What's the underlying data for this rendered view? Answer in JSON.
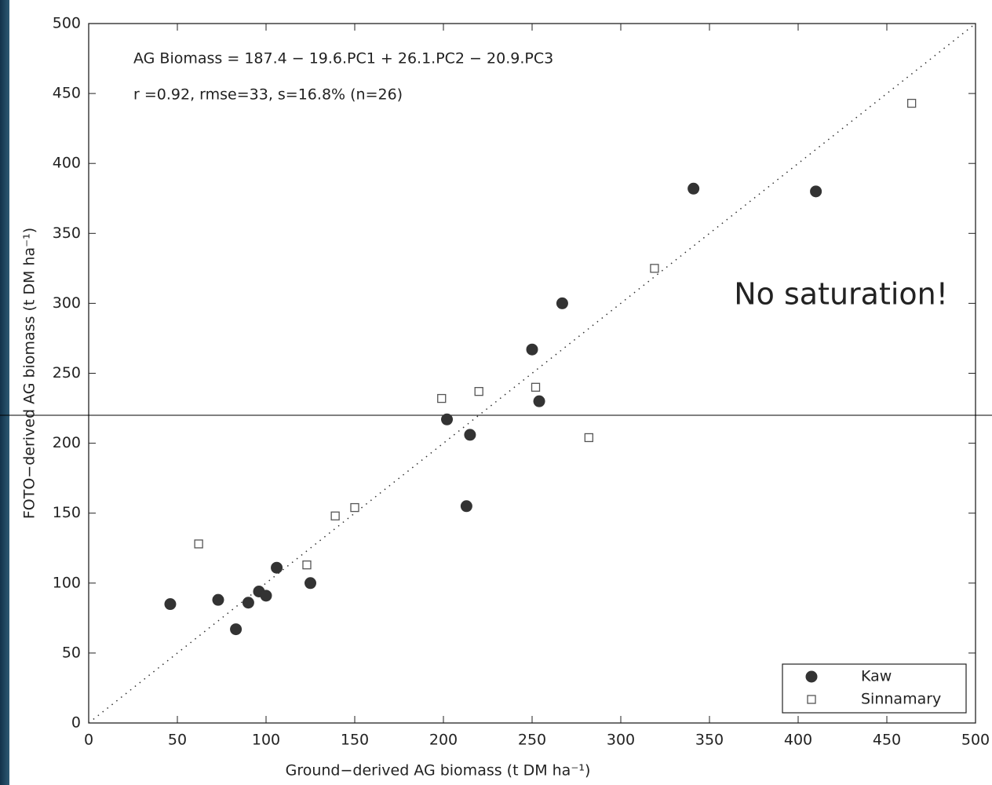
{
  "chart_data": {
    "type": "scatter",
    "annotations": [
      "AG Biomass = 187.4 − 19.6.PC1 + 26.1.PC2 − 20.9.PC3",
      "r  =0.92, rmse=33, s=16.8% (n=26)",
      "No saturation!"
    ],
    "xlabel": "Ground−derived AG biomass (t DM ha⁻¹)",
    "ylabel": "FOTO−derived AG biomass (t DM ha⁻¹)",
    "xlim": [
      0,
      500
    ],
    "ylim": [
      0,
      500
    ],
    "xticks": [
      0,
      50,
      100,
      150,
      200,
      250,
      300,
      350,
      400,
      450,
      500
    ],
    "yticks": [
      0,
      50,
      100,
      150,
      200,
      250,
      300,
      350,
      400,
      450,
      500
    ],
    "identity_line": true,
    "legend": "lower right",
    "series": [
      {
        "name": "Kaw",
        "marker": "circle",
        "color": "#333333",
        "x": [
          46,
          73,
          83,
          90,
          96,
          100,
          106,
          125,
          202,
          213,
          215,
          250,
          254,
          267,
          341,
          410
        ],
        "values": [
          85,
          88,
          67,
          86,
          94,
          91,
          111,
          100,
          217,
          155,
          206,
          267,
          230,
          300,
          382,
          380
        ]
      },
      {
        "name": "Sinnamary",
        "marker": "square",
        "color": "#555555",
        "x": [
          62,
          123,
          139,
          150,
          199,
          220,
          252,
          282,
          319,
          464
        ],
        "values": [
          128,
          113,
          148,
          154,
          232,
          237,
          240,
          204,
          325,
          443
        ]
      }
    ]
  }
}
